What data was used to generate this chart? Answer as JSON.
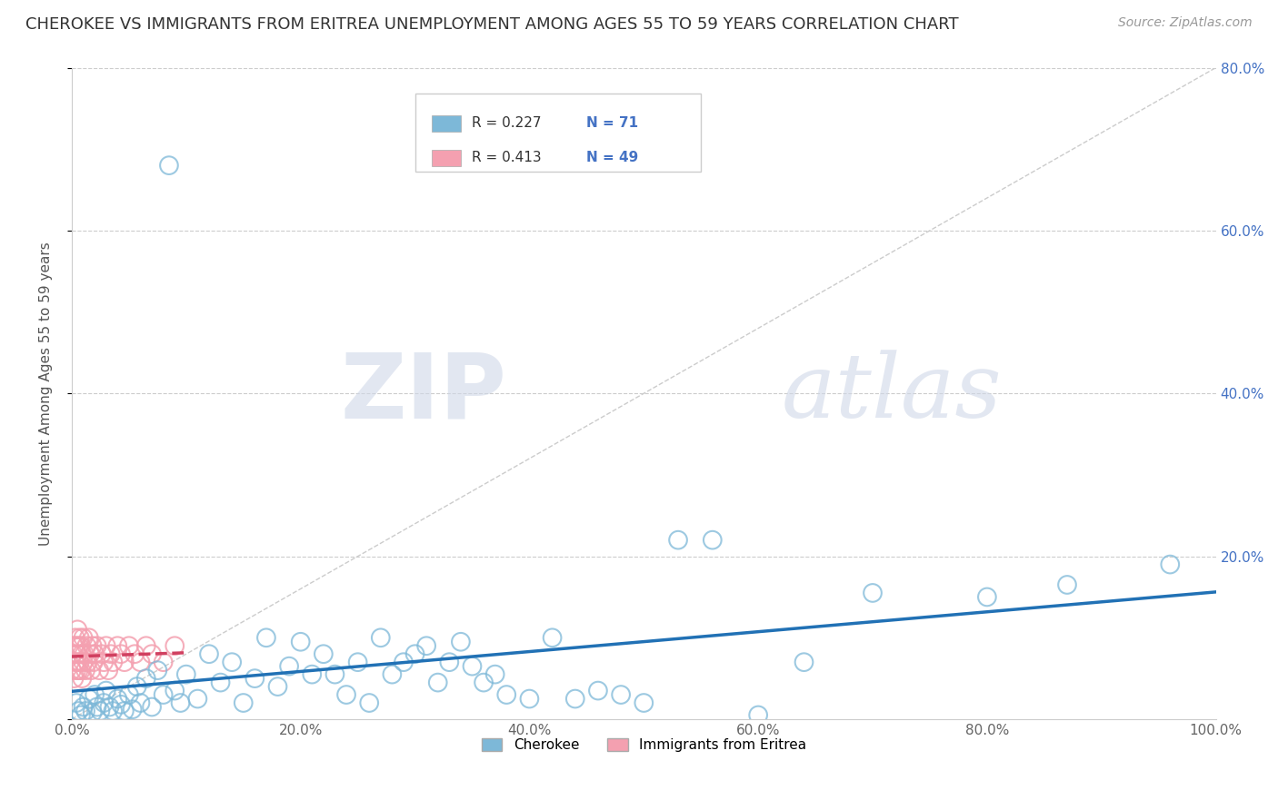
{
  "title": "CHEROKEE VS IMMIGRANTS FROM ERITREA UNEMPLOYMENT AMONG AGES 55 TO 59 YEARS CORRELATION CHART",
  "source": "Source: ZipAtlas.com",
  "ylabel": "Unemployment Among Ages 55 to 59 years",
  "xlim": [
    0.0,
    1.0
  ],
  "ylim": [
    0.0,
    0.8
  ],
  "xticks": [
    0.0,
    0.2,
    0.4,
    0.6,
    0.8,
    1.0
  ],
  "yticks": [
    0.0,
    0.2,
    0.4,
    0.6,
    0.8
  ],
  "xtick_labels": [
    "0.0%",
    "20.0%",
    "40.0%",
    "60.0%",
    "80.0%",
    "100.0%"
  ],
  "ytick_labels_right": [
    "",
    "20.0%",
    "40.0%",
    "60.0%",
    "80.0%"
  ],
  "cherokee_color": "#7db8d8",
  "eritrea_color": "#f4a0b0",
  "eritrea_fill_color": "#e05070",
  "cherokee_line_color": "#2171b5",
  "eritrea_line_color": "#d04060",
  "watermark_zip": "ZIP",
  "watermark_atlas": "atlas",
  "background_color": "#ffffff",
  "title_fontsize": 13,
  "axis_label_fontsize": 11,
  "tick_fontsize": 11,
  "cherokee_R": "0.227",
  "cherokee_N": "71",
  "eritrea_R": "0.413",
  "eritrea_N": "49",
  "legend_label_1": "Cherokee",
  "legend_label_2": "Immigrants from Eritrea",
  "cherokee_x": [
    0.004,
    0.006,
    0.008,
    0.01,
    0.012,
    0.015,
    0.018,
    0.02,
    0.022,
    0.025,
    0.028,
    0.03,
    0.033,
    0.036,
    0.04,
    0.043,
    0.046,
    0.05,
    0.053,
    0.057,
    0.06,
    0.065,
    0.07,
    0.075,
    0.08,
    0.085,
    0.09,
    0.095,
    0.1,
    0.11,
    0.12,
    0.13,
    0.14,
    0.15,
    0.16,
    0.17,
    0.18,
    0.19,
    0.2,
    0.21,
    0.22,
    0.23,
    0.24,
    0.25,
    0.26,
    0.27,
    0.28,
    0.29,
    0.3,
    0.31,
    0.32,
    0.33,
    0.34,
    0.35,
    0.36,
    0.37,
    0.38,
    0.4,
    0.42,
    0.44,
    0.46,
    0.48,
    0.5,
    0.53,
    0.56,
    0.6,
    0.64,
    0.7,
    0.8,
    0.87,
    0.96
  ],
  "cherokee_y": [
    0.02,
    0.01,
    0.005,
    0.015,
    0.01,
    0.025,
    0.008,
    0.03,
    0.015,
    0.01,
    0.02,
    0.035,
    0.015,
    0.01,
    0.025,
    0.018,
    0.01,
    0.03,
    0.012,
    0.04,
    0.02,
    0.05,
    0.015,
    0.06,
    0.03,
    0.68,
    0.035,
    0.02,
    0.055,
    0.025,
    0.08,
    0.045,
    0.07,
    0.02,
    0.05,
    0.1,
    0.04,
    0.065,
    0.095,
    0.055,
    0.08,
    0.055,
    0.03,
    0.07,
    0.02,
    0.1,
    0.055,
    0.07,
    0.08,
    0.09,
    0.045,
    0.07,
    0.095,
    0.065,
    0.045,
    0.055,
    0.03,
    0.025,
    0.1,
    0.025,
    0.035,
    0.03,
    0.02,
    0.22,
    0.22,
    0.005,
    0.07,
    0.155,
    0.15,
    0.165,
    0.19
  ],
  "eritrea_x": [
    0.0,
    0.001,
    0.002,
    0.002,
    0.003,
    0.003,
    0.004,
    0.004,
    0.005,
    0.005,
    0.005,
    0.006,
    0.006,
    0.007,
    0.007,
    0.008,
    0.008,
    0.009,
    0.009,
    0.01,
    0.01,
    0.011,
    0.012,
    0.013,
    0.014,
    0.015,
    0.016,
    0.017,
    0.018,
    0.019,
    0.02,
    0.022,
    0.024,
    0.026,
    0.028,
    0.03,
    0.032,
    0.034,
    0.036,
    0.04,
    0.043,
    0.046,
    0.05,
    0.055,
    0.06,
    0.065,
    0.07,
    0.08,
    0.09
  ],
  "eritrea_y": [
    0.06,
    0.08,
    0.05,
    0.09,
    0.07,
    0.1,
    0.06,
    0.09,
    0.08,
    0.07,
    0.11,
    0.06,
    0.09,
    0.07,
    0.1,
    0.06,
    0.09,
    0.08,
    0.05,
    0.07,
    0.1,
    0.08,
    0.06,
    0.09,
    0.07,
    0.1,
    0.08,
    0.06,
    0.09,
    0.07,
    0.08,
    0.09,
    0.06,
    0.08,
    0.07,
    0.09,
    0.06,
    0.08,
    0.07,
    0.09,
    0.08,
    0.07,
    0.09,
    0.08,
    0.07,
    0.09,
    0.08,
    0.07,
    0.09
  ]
}
